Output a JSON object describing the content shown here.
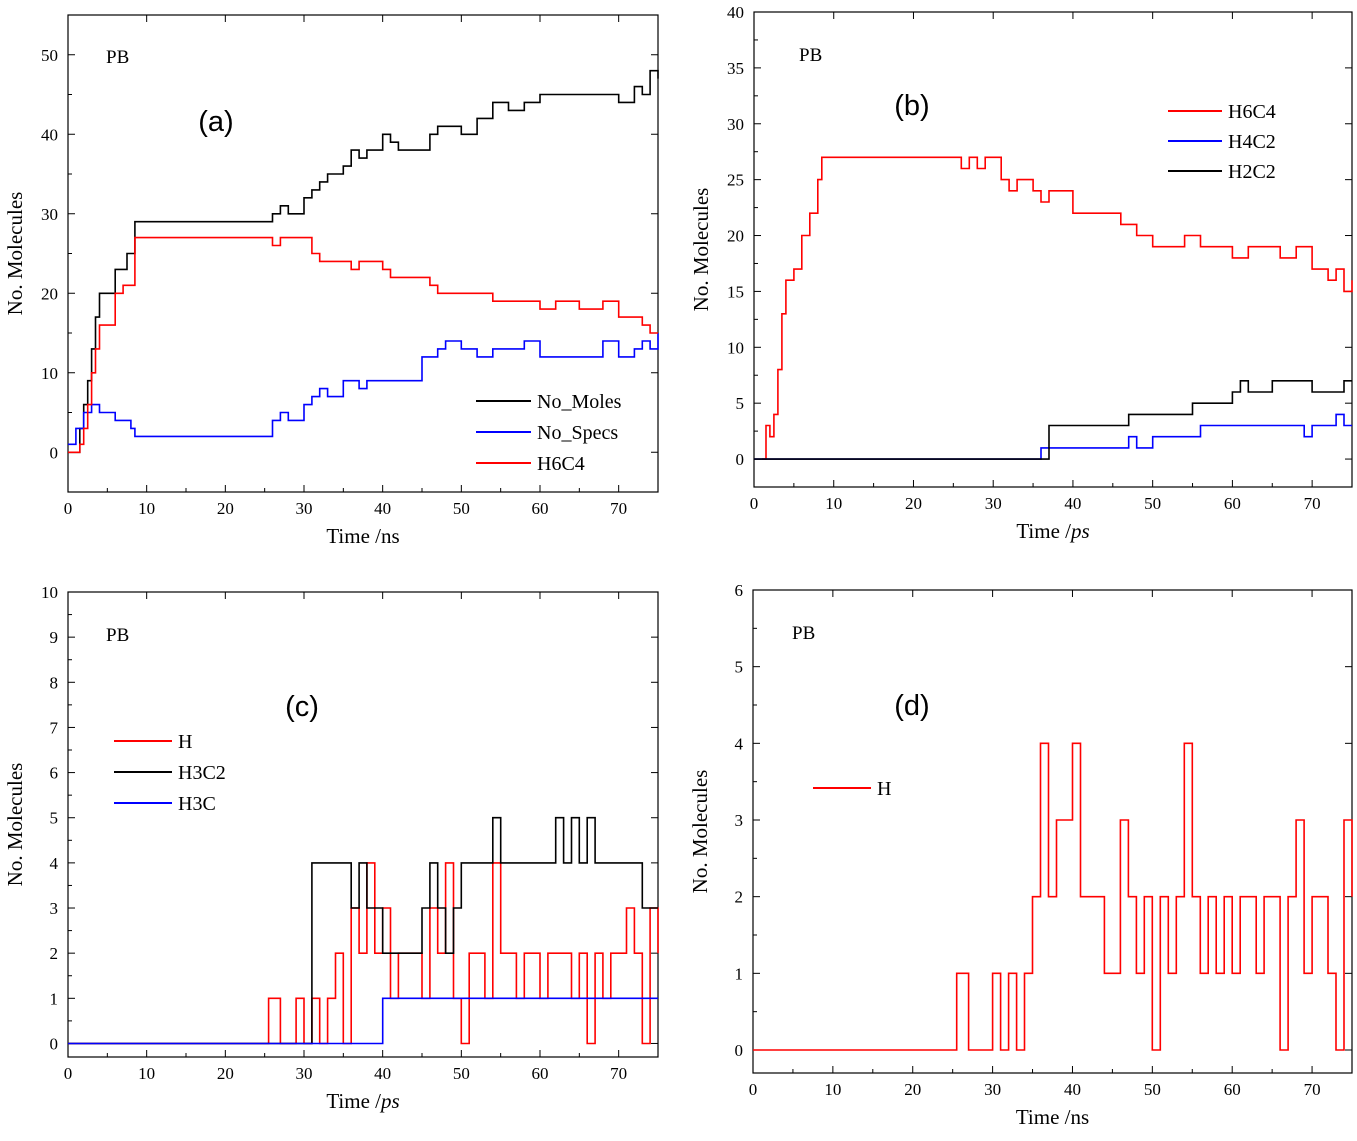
{
  "chart_data": [
    {
      "panel": "a",
      "type": "line",
      "letter": "(a)",
      "tag": "PB",
      "xlabel_text": "Time /ns",
      "ylabel": "No. Molecules",
      "xlim": [
        0,
        75
      ],
      "ylim": [
        -5,
        55
      ],
      "xticks": [
        0,
        10,
        20,
        30,
        40,
        50,
        60,
        70
      ],
      "yticks": [
        0,
        10,
        20,
        30,
        40,
        50
      ],
      "legend_position": "bottom-right",
      "series": [
        {
          "name": "No_Moles",
          "color": "#000000",
          "x": [
            0,
            1.5,
            2.0,
            2.5,
            3.0,
            3.5,
            4.0,
            5.0,
            6.0,
            7.5,
            8.5,
            25,
            26,
            27,
            28,
            30,
            31,
            32,
            33,
            35,
            36,
            37,
            38,
            40,
            41,
            42,
            45,
            46,
            47,
            50,
            52,
            54,
            56,
            58,
            60,
            62,
            65,
            68,
            70,
            72,
            73,
            74,
            75
          ],
          "y": [
            0,
            3,
            6,
            9,
            13,
            17,
            20,
            20,
            23,
            25,
            29,
            29,
            30,
            31,
            30,
            32,
            33,
            34,
            35,
            36,
            38,
            37,
            38,
            40,
            39,
            38,
            38,
            40,
            41,
            40,
            42,
            44,
            43,
            44,
            45,
            45,
            45,
            45,
            44,
            46,
            45,
            48,
            47
          ]
        },
        {
          "name": "No_Specs",
          "color": "#0000ff",
          "x": [
            0,
            1,
            2,
            3,
            4,
            5,
            6,
            7,
            8,
            8.5,
            25,
            26,
            27,
            28,
            30,
            31,
            32,
            33,
            35,
            36,
            37,
            38,
            40,
            45,
            47,
            48,
            50,
            52,
            54,
            56,
            58,
            60,
            62,
            65,
            68,
            70,
            72,
            73,
            74,
            75
          ],
          "y": [
            1,
            3,
            5,
            6,
            5,
            5,
            4,
            4,
            3,
            2,
            2,
            4,
            5,
            4,
            6,
            7,
            8,
            7,
            9,
            9,
            8,
            9,
            9,
            12,
            13,
            14,
            13,
            12,
            13,
            13,
            14,
            12,
            12,
            12,
            14,
            12,
            13,
            14,
            13,
            15
          ]
        },
        {
          "name": "H6C4",
          "color": "#ff0000",
          "x": [
            0,
            1.5,
            2.0,
            2.5,
            3.0,
            3.5,
            4.0,
            5.0,
            6.0,
            7.0,
            8.5,
            25,
            26,
            27,
            28,
            30,
            31,
            32,
            35,
            36,
            37,
            38,
            40,
            41,
            45,
            46,
            47,
            50,
            52,
            54,
            56,
            58,
            60,
            62,
            65,
            68,
            70,
            72,
            73,
            74,
            75
          ],
          "y": [
            0,
            1,
            3,
            6,
            10,
            13,
            16,
            16,
            20,
            21,
            27,
            27,
            26,
            27,
            27,
            27,
            25,
            24,
            24,
            23,
            24,
            24,
            23,
            22,
            22,
            21,
            20,
            20,
            20,
            19,
            19,
            19,
            18,
            19,
            18,
            19,
            17,
            17,
            16,
            15,
            15
          ]
        }
      ]
    },
    {
      "panel": "b",
      "type": "line",
      "letter": "(b)",
      "tag": "PB",
      "xlabel_main": "Time /",
      "xlabel_unit": "ps",
      "ylabel": "No. Molecules",
      "xlim": [
        0,
        75
      ],
      "ylim": [
        -2.5,
        40
      ],
      "xticks": [
        0,
        10,
        20,
        30,
        40,
        50,
        60,
        70
      ],
      "yticks": [
        0,
        5,
        10,
        15,
        20,
        25,
        30,
        35,
        40
      ],
      "legend_position": "top-right",
      "series": [
        {
          "name": "H6C4",
          "color": "#ff0000",
          "x": [
            1,
            1.5,
            2.0,
            2.5,
            3.0,
            3.5,
            4.0,
            5.0,
            6.0,
            7.0,
            8.0,
            8.5,
            25,
            26,
            27,
            28,
            29,
            30,
            31,
            32,
            33,
            35,
            36,
            37,
            38,
            40,
            45,
            46,
            48,
            50,
            52,
            54,
            56,
            58,
            60,
            62,
            64,
            66,
            68,
            70,
            72,
            73,
            74,
            75
          ],
          "y": [
            0,
            3,
            2,
            4,
            8,
            13,
            16,
            17,
            20,
            22,
            25,
            27,
            27,
            26,
            27,
            26,
            27,
            27,
            25,
            24,
            25,
            24,
            23,
            24,
            24,
            22,
            22,
            21,
            20,
            19,
            19,
            20,
            19,
            19,
            18,
            19,
            19,
            18,
            19,
            17,
            16,
            17,
            15,
            16
          ]
        },
        {
          "name": "H4C2",
          "color": "#0000ff",
          "x": [
            0,
            31,
            36,
            37,
            40,
            46,
            47,
            48,
            50,
            52,
            55,
            56,
            60,
            65,
            69,
            70,
            73,
            74,
            75
          ],
          "y": [
            0,
            0,
            1,
            1,
            1,
            1,
            2,
            1,
            2,
            2,
            2,
            3,
            3,
            3,
            2,
            3,
            4,
            3,
            3
          ]
        },
        {
          "name": "H2C2",
          "color": "#000000",
          "x": [
            0,
            36,
            37,
            40,
            46,
            47,
            48,
            50,
            54,
            55,
            56,
            58,
            60,
            61,
            62,
            65,
            68,
            70,
            74,
            75
          ],
          "y": [
            0,
            0,
            3,
            3,
            3,
            4,
            4,
            4,
            4,
            5,
            5,
            5,
            6,
            7,
            6,
            7,
            7,
            6,
            7,
            7
          ]
        }
      ]
    },
    {
      "panel": "c",
      "type": "line",
      "letter": "(c)",
      "tag": "PB",
      "xlabel_main": "Time /",
      "xlabel_unit": "ps",
      "ylabel": "No. Molecules",
      "xlim": [
        0,
        75
      ],
      "ylim": [
        -0.3,
        10
      ],
      "xticks": [
        0,
        10,
        20,
        30,
        40,
        50,
        60,
        70
      ],
      "yticks": [
        0,
        1,
        2,
        3,
        4,
        5,
        6,
        7,
        8,
        9,
        10
      ],
      "legend_position": "middle-left",
      "series": [
        {
          "name": "H",
          "color": "#ff0000",
          "x": [
            0,
            25,
            25.5,
            26,
            27,
            28,
            29,
            30,
            31,
            32,
            33,
            34,
            35,
            36,
            37,
            38,
            39,
            40,
            41,
            42,
            44,
            45,
            46,
            47,
            48,
            49,
            50,
            51,
            52,
            53,
            54,
            55,
            56,
            57,
            58,
            59,
            60,
            61,
            62,
            63,
            64,
            65,
            66,
            67,
            68,
            69,
            70,
            71,
            72,
            73,
            74,
            75
          ],
          "y": [
            0,
            0,
            1,
            1,
            0,
            0,
            1,
            0,
            1,
            0,
            1,
            2,
            0,
            3,
            2,
            4,
            2,
            3,
            1,
            2,
            2,
            1,
            3,
            2,
            4,
            1,
            0,
            2,
            2,
            1,
            4,
            2,
            2,
            1,
            2,
            2,
            1,
            2,
            2,
            2,
            1,
            2,
            0,
            2,
            1,
            2,
            2,
            3,
            2,
            0,
            3,
            2
          ]
        },
        {
          "name": "H3C2",
          "color": "#000000",
          "x": [
            0,
            30,
            31,
            35,
            36,
            37,
            38,
            40,
            44,
            45,
            46,
            47,
            48,
            49,
            50,
            54,
            55,
            56,
            60,
            62,
            63,
            64,
            65,
            66,
            67,
            70,
            72,
            73,
            74,
            75
          ],
          "y": [
            0,
            0,
            4,
            4,
            3,
            4,
            3,
            2,
            2,
            3,
            4,
            3,
            2,
            3,
            4,
            5,
            4,
            4,
            4,
            5,
            4,
            5,
            4,
            5,
            4,
            4,
            4,
            3,
            3,
            3
          ]
        },
        {
          "name": "H3C",
          "color": "#0000ff",
          "x": [
            0,
            40,
            40,
            75
          ],
          "y": [
            0,
            0,
            1,
            1
          ]
        }
      ]
    },
    {
      "panel": "d",
      "type": "line",
      "letter": "(d)",
      "tag": "PB",
      "xlabel_text": "Time /ns",
      "ylabel": "No. Molecules",
      "xlim": [
        0,
        75
      ],
      "ylim": [
        -0.3,
        6
      ],
      "xticks": [
        0,
        10,
        20,
        30,
        40,
        50,
        60,
        70
      ],
      "yticks": [
        0,
        1,
        2,
        3,
        4,
        5,
        6
      ],
      "legend_position": "middle-left",
      "series": [
        {
          "name": "H",
          "color": "#ff0000",
          "x": [
            0,
            25.5,
            26,
            27,
            28,
            29,
            30,
            31,
            32,
            33,
            34,
            35,
            35.5,
            36,
            37,
            38,
            39,
            40,
            41,
            42,
            44,
            45,
            46,
            47,
            48,
            49,
            50,
            51,
            52,
            53,
            54,
            55,
            56,
            57,
            58,
            59,
            60,
            61,
            62,
            63,
            64,
            65,
            66,
            67,
            68,
            69,
            70,
            71,
            72,
            73,
            74,
            75
          ],
          "y": [
            0,
            1,
            1,
            0,
            0,
            0,
            1,
            0,
            1,
            0,
            1,
            2,
            2,
            4,
            2,
            3,
            3,
            4,
            2,
            2,
            1,
            1,
            3,
            2,
            1,
            2,
            0,
            2,
            1,
            2,
            4,
            2,
            1,
            2,
            1,
            2,
            1,
            2,
            2,
            1,
            2,
            2,
            0,
            2,
            3,
            1,
            2,
            2,
            1,
            0,
            3,
            2
          ]
        }
      ]
    }
  ]
}
